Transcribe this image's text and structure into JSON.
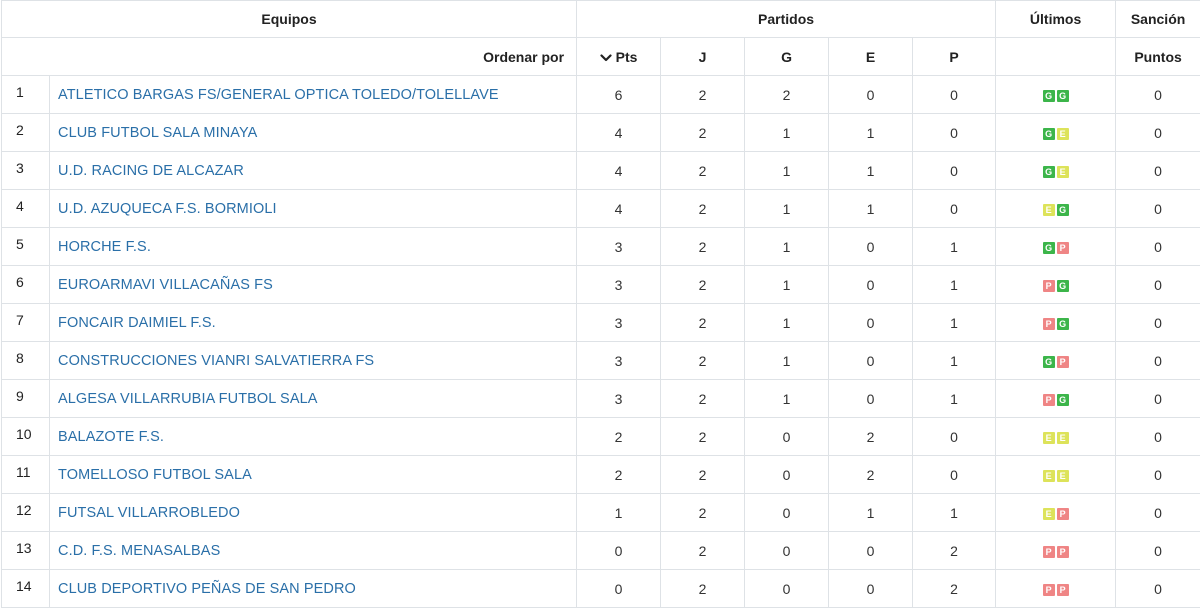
{
  "header": {
    "teams": "Equipos",
    "matches": "Partidos",
    "last": "Últimos",
    "sanction": "Sanción",
    "sort_by": "Ordenar por",
    "pts": "Pts",
    "j": "J",
    "g": "G",
    "e": "E",
    "p": "P",
    "points": "Puntos"
  },
  "result_colors": {
    "G": "#3cb54a",
    "E": "#dde35a",
    "P": "#ef8585"
  },
  "rows": [
    {
      "pos": "1",
      "team": "ATLETICO BARGAS FS/GENERAL OPTICA TOLEDO/TOLELLAVE",
      "pts": "6",
      "j": "2",
      "g": "2",
      "e": "0",
      "p": "0",
      "last": [
        "G",
        "G"
      ],
      "sanction": "0"
    },
    {
      "pos": "2",
      "team": "CLUB FUTBOL SALA MINAYA",
      "pts": "4",
      "j": "2",
      "g": "1",
      "e": "1",
      "p": "0",
      "last": [
        "G",
        "E"
      ],
      "sanction": "0"
    },
    {
      "pos": "3",
      "team": "U.D. RACING DE ALCAZAR",
      "pts": "4",
      "j": "2",
      "g": "1",
      "e": "1",
      "p": "0",
      "last": [
        "G",
        "E"
      ],
      "sanction": "0"
    },
    {
      "pos": "4",
      "team": "U.D. AZUQUECA F.S. BORMIOLI",
      "pts": "4",
      "j": "2",
      "g": "1",
      "e": "1",
      "p": "0",
      "last": [
        "E",
        "G"
      ],
      "sanction": "0"
    },
    {
      "pos": "5",
      "team": "HORCHE F.S.",
      "pts": "3",
      "j": "2",
      "g": "1",
      "e": "0",
      "p": "1",
      "last": [
        "G",
        "P"
      ],
      "sanction": "0"
    },
    {
      "pos": "6",
      "team": "EUROARMAVI VILLACAÑAS FS",
      "pts": "3",
      "j": "2",
      "g": "1",
      "e": "0",
      "p": "1",
      "last": [
        "P",
        "G"
      ],
      "sanction": "0"
    },
    {
      "pos": "7",
      "team": "FONCAIR DAIMIEL F.S.",
      "pts": "3",
      "j": "2",
      "g": "1",
      "e": "0",
      "p": "1",
      "last": [
        "P",
        "G"
      ],
      "sanction": "0"
    },
    {
      "pos": "8",
      "team": "CONSTRUCCIONES VIANRI SALVATIERRA FS",
      "pts": "3",
      "j": "2",
      "g": "1",
      "e": "0",
      "p": "1",
      "last": [
        "G",
        "P"
      ],
      "sanction": "0"
    },
    {
      "pos": "9",
      "team": "ALGESA VILLARRUBIA FUTBOL SALA",
      "pts": "3",
      "j": "2",
      "g": "1",
      "e": "0",
      "p": "1",
      "last": [
        "P",
        "G"
      ],
      "sanction": "0"
    },
    {
      "pos": "10",
      "team": "BALAZOTE F.S.",
      "pts": "2",
      "j": "2",
      "g": "0",
      "e": "2",
      "p": "0",
      "last": [
        "E",
        "E"
      ],
      "sanction": "0"
    },
    {
      "pos": "11",
      "team": "TOMELLOSO FUTBOL SALA",
      "pts": "2",
      "j": "2",
      "g": "0",
      "e": "2",
      "p": "0",
      "last": [
        "E",
        "E"
      ],
      "sanction": "0"
    },
    {
      "pos": "12",
      "team": "FUTSAL VILLARROBLEDO",
      "pts": "1",
      "j": "2",
      "g": "0",
      "e": "1",
      "p": "1",
      "last": [
        "E",
        "P"
      ],
      "sanction": "0"
    },
    {
      "pos": "13",
      "team": "C.D. F.S. MENASALBAS",
      "pts": "0",
      "j": "2",
      "g": "0",
      "e": "0",
      "p": "2",
      "last": [
        "P",
        "P"
      ],
      "sanction": "0"
    },
    {
      "pos": "14",
      "team": "CLUB DEPORTIVO PEÑAS DE SAN PEDRO",
      "pts": "0",
      "j": "2",
      "g": "0",
      "e": "0",
      "p": "2",
      "last": [
        "P",
        "P"
      ],
      "sanction": "0"
    }
  ]
}
